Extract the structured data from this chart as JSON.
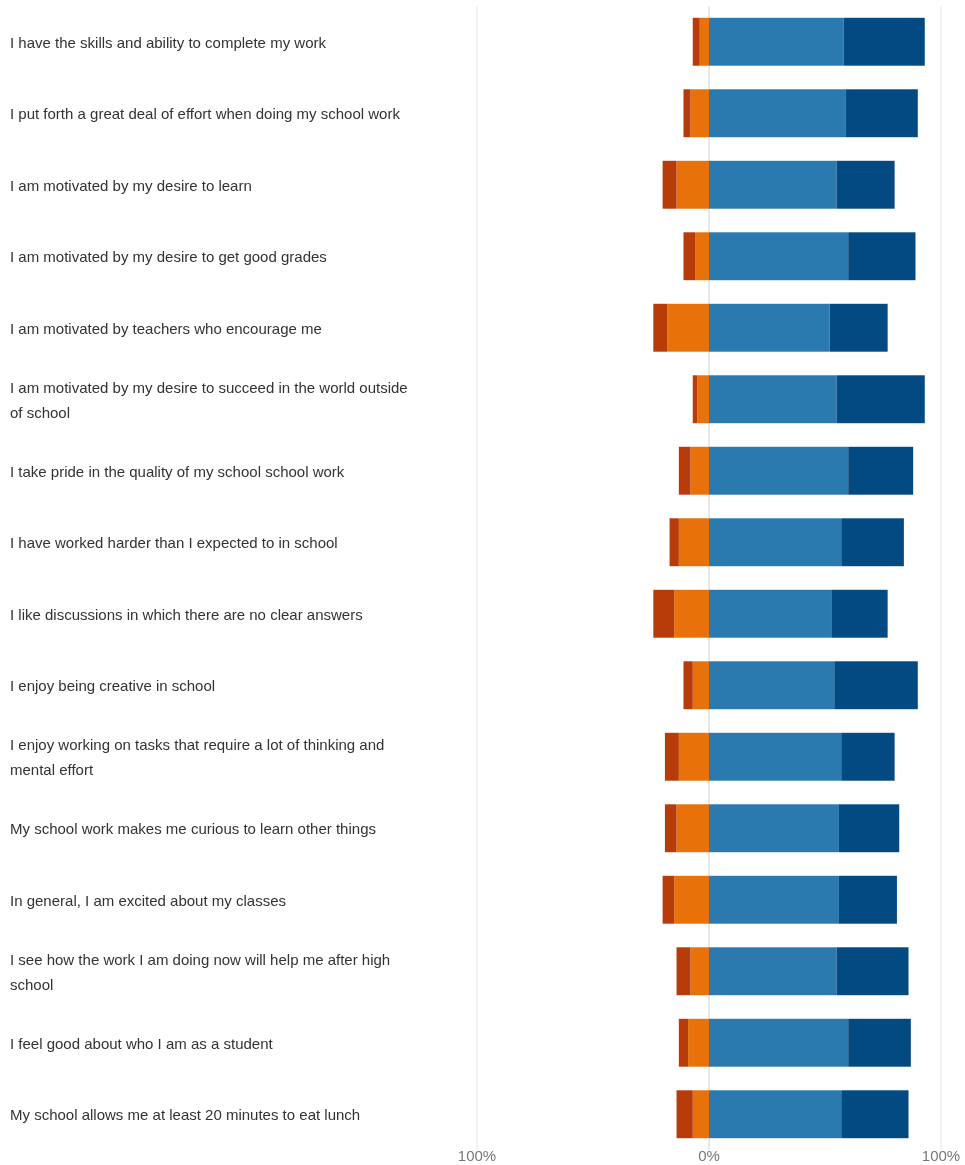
{
  "chart_data": {
    "type": "bar",
    "orientation": "horizontal",
    "stacked": true,
    "grid": "x",
    "categories": [
      "I have the skills and ability to complete my work",
      "I put forth a great deal of effort when doing my school work",
      "I am motivated by my desire to learn",
      "I am motivated by my desire to get good grades",
      "I am motivated by teachers who encourage me",
      "I am motivated by my desire to succeed in the world outside of school",
      "I take pride in the quality of my school school work",
      "I have worked harder than I expected to in school",
      "I like discussions in which there are no clear answers",
      "I enjoy being creative in school",
      "I enjoy working on tasks that require a lot of thinking and mental effort",
      "My school work makes me curious to learn other things",
      "In general, I am excited about my classes",
      "I see how the work I am doing now will help me after high school",
      "I feel good about who I am as a student",
      "My school allows me at least 20 minutes to eat lunch"
    ],
    "xlim": [
      -100,
      100
    ],
    "xticks": [
      {
        "value": -100,
        "label": "100%"
      },
      {
        "value": 0,
        "label": "0%"
      },
      {
        "value": 100,
        "label": "100%"
      }
    ],
    "series": [
      {
        "color": "#e8710a",
        "values": [
          -4,
          -8,
          -14,
          -6,
          -18,
          -5,
          -8,
          -13,
          -15,
          -7,
          -13,
          -14,
          -15,
          -8,
          -9,
          -7
        ]
      },
      {
        "color": "#b83c0a",
        "values": [
          -3,
          -3,
          -6,
          -5,
          -6,
          -2,
          -5,
          -4,
          -9,
          -4,
          -6,
          -5,
          -5,
          -6,
          -4,
          -7
        ]
      },
      {
        "color": "#2a7ab0",
        "values": [
          58,
          59,
          55,
          60,
          52,
          55,
          60,
          57,
          53,
          54,
          57,
          56,
          56,
          55,
          60,
          57
        ]
      },
      {
        "color": "#034a83",
        "values": [
          35,
          31,
          25,
          29,
          25,
          38,
          28,
          27,
          24,
          36,
          23,
          26,
          25,
          31,
          27,
          29
        ]
      }
    ]
  }
}
